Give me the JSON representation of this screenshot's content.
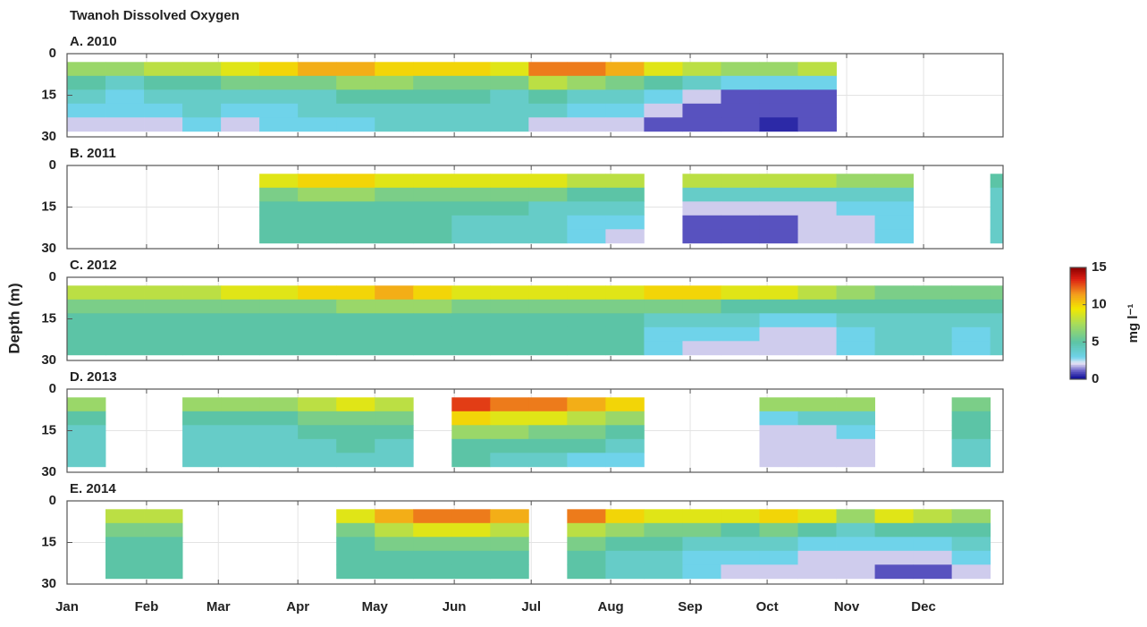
{
  "chart_data": {
    "type": "heatmap",
    "title": "Twanoh Dissolved Oxygen",
    "ylabel": "Depth (m)",
    "xlim": [
      0,
      365
    ],
    "xticks": [
      {
        "value": 0,
        "label": "Jan"
      },
      {
        "value": 31,
        "label": "Feb"
      },
      {
        "value": 59,
        "label": "Mar"
      },
      {
        "value": 90,
        "label": "Apr"
      },
      {
        "value": 120,
        "label": "May"
      },
      {
        "value": 151,
        "label": "Jun"
      },
      {
        "value": 181,
        "label": "Jul"
      },
      {
        "value": 212,
        "label": "Aug"
      },
      {
        "value": 243,
        "label": "Sep"
      },
      {
        "value": 273,
        "label": "Oct"
      },
      {
        "value": 304,
        "label": "Nov"
      },
      {
        "value": 334,
        "label": "Dec"
      }
    ],
    "ylim": [
      0,
      30
    ],
    "yticks": [
      0,
      15,
      30
    ],
    "y_inverted": true,
    "grid": true,
    "x_bins": [
      0,
      15,
      30,
      45,
      60,
      75,
      90,
      105,
      120,
      135,
      150,
      165,
      180,
      195,
      210,
      225,
      240,
      255,
      270,
      285,
      300,
      315,
      330,
      345,
      360,
      365
    ],
    "depth_bins": [
      3,
      8,
      13,
      18,
      23,
      28
    ],
    "clim": [
      0,
      15
    ],
    "cticks": [
      0,
      5,
      10,
      15
    ],
    "clabel": "mg l⁻¹",
    "colorscale": [
      [
        0,
        "#00008f"
      ],
      [
        1.2,
        "#6a62c8"
      ],
      [
        2.2,
        "#e8e6f6"
      ],
      [
        3,
        "#6fd3ea"
      ],
      [
        5,
        "#5cc4a6"
      ],
      [
        7.5,
        "#a9dc5a"
      ],
      [
        9.5,
        "#f2e800"
      ],
      [
        11.5,
        "#f39a1e"
      ],
      [
        13.5,
        "#dc1e12"
      ],
      [
        15,
        "#8b0000"
      ]
    ],
    "panels": [
      {
        "title": "A. 2010",
        "values": [
          [
            7,
            7,
            8,
            8,
            9,
            10,
            11,
            11,
            10,
            10,
            10,
            9,
            12,
            12,
            11,
            9,
            8,
            7,
            7,
            8,
            null,
            null,
            null,
            null,
            null
          ],
          [
            5,
            4,
            5,
            5,
            6,
            6,
            6,
            7,
            7,
            6,
            6,
            6,
            8,
            7,
            6,
            5,
            4,
            3,
            3,
            3,
            null,
            null,
            null,
            null,
            null
          ],
          [
            4,
            3,
            4,
            4,
            4,
            4,
            4,
            5,
            5,
            5,
            5,
            4,
            5,
            4,
            4,
            3,
            2,
            1,
            1,
            1,
            null,
            null,
            null,
            null,
            null
          ],
          [
            3,
            3,
            3,
            4,
            3,
            3,
            4,
            4,
            4,
            4,
            4,
            4,
            4,
            3,
            3,
            2,
            1,
            1,
            1,
            1,
            null,
            null,
            null,
            null,
            null
          ],
          [
            2,
            2,
            2,
            3,
            2,
            3,
            3,
            3,
            4,
            4,
            4,
            4,
            2,
            2,
            2,
            1,
            1,
            1,
            0.5,
            1,
            null,
            null,
            null,
            null,
            null
          ]
        ]
      },
      {
        "title": "B. 2011",
        "values": [
          [
            null,
            null,
            null,
            null,
            null,
            9,
            10,
            10,
            9,
            9,
            9,
            9,
            9,
            8,
            8,
            null,
            8,
            8,
            8,
            8,
            7,
            7,
            null,
            null,
            5
          ],
          [
            null,
            null,
            null,
            null,
            null,
            6,
            7,
            7,
            6,
            6,
            6,
            6,
            6,
            5,
            5,
            null,
            4,
            4,
            4,
            4,
            4,
            4,
            null,
            null,
            4
          ],
          [
            null,
            null,
            null,
            null,
            null,
            5,
            5,
            5,
            5,
            5,
            5,
            5,
            4,
            4,
            4,
            null,
            2,
            2,
            2,
            2,
            3,
            3,
            null,
            null,
            4
          ],
          [
            null,
            null,
            null,
            null,
            null,
            5,
            5,
            5,
            5,
            5,
            4,
            4,
            4,
            3,
            3,
            null,
            1,
            1,
            1,
            2,
            2,
            3,
            null,
            null,
            4
          ],
          [
            null,
            null,
            null,
            null,
            null,
            5,
            5,
            5,
            5,
            5,
            4,
            4,
            4,
            3,
            2,
            null,
            1,
            1,
            1,
            2,
            2,
            3,
            null,
            null,
            4
          ]
        ]
      },
      {
        "title": "C. 2012",
        "values": [
          [
            8,
            8,
            8,
            8,
            9,
            9,
            10,
            10,
            11,
            10,
            9,
            9,
            9,
            9,
            9,
            10,
            10,
            9,
            9,
            8,
            7,
            6,
            6,
            6,
            6
          ],
          [
            6,
            6,
            6,
            6,
            6,
            6,
            6,
            7,
            7,
            7,
            6,
            6,
            6,
            6,
            6,
            6,
            6,
            5,
            5,
            5,
            5,
            5,
            5,
            5,
            5
          ],
          [
            5,
            5,
            5,
            5,
            5,
            5,
            5,
            5,
            5,
            5,
            5,
            5,
            5,
            5,
            5,
            4,
            4,
            4,
            3,
            3,
            4,
            4,
            4,
            4,
            4
          ],
          [
            5,
            5,
            5,
            5,
            5,
            5,
            5,
            5,
            5,
            5,
            5,
            5,
            5,
            5,
            5,
            3,
            3,
            3,
            2,
            2,
            3,
            4,
            4,
            3,
            4
          ],
          [
            5,
            5,
            5,
            5,
            5,
            5,
            5,
            5,
            5,
            5,
            5,
            5,
            5,
            5,
            5,
            3,
            2,
            2,
            2,
            2,
            3,
            4,
            4,
            3,
            4
          ]
        ]
      },
      {
        "title": "D. 2013",
        "values": [
          [
            7,
            null,
            null,
            7,
            7,
            7,
            8,
            9,
            8,
            null,
            13,
            12,
            12,
            11,
            10,
            null,
            null,
            null,
            7,
            7,
            7,
            null,
            null,
            6,
            null
          ],
          [
            5,
            null,
            null,
            5,
            5,
            5,
            6,
            6,
            6,
            null,
            10,
            9,
            9,
            8,
            7,
            null,
            null,
            null,
            3,
            4,
            4,
            null,
            null,
            5,
            null
          ],
          [
            4,
            null,
            null,
            4,
            4,
            4,
            5,
            5,
            5,
            null,
            7,
            7,
            6,
            6,
            5,
            null,
            null,
            null,
            2,
            2,
            3,
            null,
            null,
            5,
            null
          ],
          [
            4,
            null,
            null,
            4,
            4,
            4,
            4,
            5,
            4,
            null,
            5,
            5,
            5,
            5,
            4,
            null,
            null,
            null,
            2,
            2,
            2,
            null,
            null,
            4,
            null
          ],
          [
            4,
            null,
            null,
            4,
            4,
            4,
            4,
            4,
            4,
            null,
            5,
            4,
            4,
            3,
            3,
            null,
            null,
            null,
            2,
            2,
            2,
            null,
            null,
            4,
            null
          ]
        ]
      },
      {
        "title": "E. 2014",
        "values": [
          [
            null,
            8,
            8,
            null,
            null,
            null,
            null,
            9,
            11,
            12,
            12,
            11,
            null,
            12,
            10,
            9,
            9,
            9,
            10,
            9,
            7,
            9,
            8,
            7,
            null
          ],
          [
            null,
            6,
            6,
            null,
            null,
            null,
            null,
            6,
            8,
            9,
            9,
            8,
            null,
            8,
            7,
            6,
            6,
            5,
            6,
            5,
            4,
            5,
            5,
            5,
            null
          ],
          [
            null,
            5,
            5,
            null,
            null,
            null,
            null,
            5,
            6,
            6,
            6,
            6,
            null,
            6,
            5,
            5,
            4,
            4,
            4,
            3,
            3,
            3,
            3,
            4,
            null
          ],
          [
            null,
            5,
            5,
            null,
            null,
            null,
            null,
            5,
            5,
            5,
            5,
            5,
            null,
            5,
            4,
            4,
            3,
            3,
            3,
            2,
            2,
            2,
            2,
            3,
            null
          ],
          [
            null,
            5,
            5,
            null,
            null,
            null,
            null,
            5,
            5,
            5,
            5,
            5,
            null,
            5,
            4,
            4,
            3,
            2,
            2,
            2,
            2,
            1,
            1,
            2,
            null
          ]
        ]
      }
    ]
  }
}
